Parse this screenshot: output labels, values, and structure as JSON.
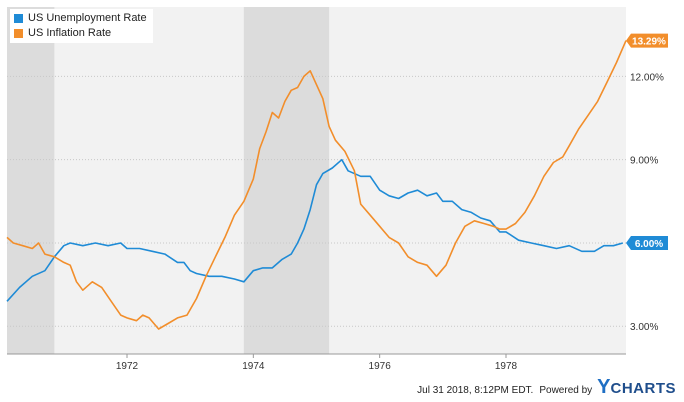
{
  "legend": {
    "items": [
      {
        "label": "US Unemployment Rate",
        "color": "#1f8bd6"
      },
      {
        "label": "US Inflation Rate",
        "color": "#f28e2b"
      }
    ]
  },
  "footer": {
    "timestamp": "Jul 31 2018, 8:12PM EDT.",
    "powered_by": "Powered by",
    "brand_y": "Y",
    "brand_rest": "CHARTS"
  },
  "chart_data": {
    "type": "line",
    "x_range": [
      1970.1,
      1979.9
    ],
    "ylim": [
      2.0,
      14.5
    ],
    "x_ticks": [
      {
        "value": 1972,
        "label": "1972"
      },
      {
        "value": 1974,
        "label": "1974"
      },
      {
        "value": 1976,
        "label": "1976"
      },
      {
        "value": 1978,
        "label": "1978"
      }
    ],
    "y_ticks": [
      {
        "value": 3,
        "label": "3.00%"
      },
      {
        "value": 6,
        "label": "6.00%"
      },
      {
        "value": 9,
        "label": "9.00%"
      },
      {
        "value": 12,
        "label": "12.00%"
      }
    ],
    "shaded_periods": [
      [
        1970.1,
        1970.85
      ],
      [
        1973.85,
        1975.2
      ]
    ],
    "end_labels": [
      {
        "series": "US Inflation Rate",
        "label": "13.29%",
        "value": 13.29,
        "color": "#f28e2b"
      },
      {
        "series": "US Unemployment Rate",
        "label": "6.00%",
        "value": 6.0,
        "color": "#1f8bd6"
      }
    ],
    "series": [
      {
        "name": "US Unemployment Rate",
        "color": "#1f8bd6",
        "points": [
          [
            1970.1,
            3.9
          ],
          [
            1970.3,
            4.4
          ],
          [
            1970.5,
            4.8
          ],
          [
            1970.7,
            5.0
          ],
          [
            1970.85,
            5.5
          ],
          [
            1971.0,
            5.9
          ],
          [
            1971.1,
            6.0
          ],
          [
            1971.3,
            5.9
          ],
          [
            1971.5,
            6.0
          ],
          [
            1971.7,
            5.9
          ],
          [
            1971.9,
            6.0
          ],
          [
            1972.0,
            5.8
          ],
          [
            1972.2,
            5.8
          ],
          [
            1972.4,
            5.7
          ],
          [
            1972.6,
            5.6
          ],
          [
            1972.8,
            5.3
          ],
          [
            1972.9,
            5.3
          ],
          [
            1973.0,
            5.0
          ],
          [
            1973.1,
            4.9
          ],
          [
            1973.3,
            4.8
          ],
          [
            1973.5,
            4.8
          ],
          [
            1973.7,
            4.7
          ],
          [
            1973.85,
            4.6
          ],
          [
            1974.0,
            5.0
          ],
          [
            1974.15,
            5.1
          ],
          [
            1974.3,
            5.1
          ],
          [
            1974.45,
            5.4
          ],
          [
            1974.6,
            5.6
          ],
          [
            1974.7,
            6.0
          ],
          [
            1974.8,
            6.5
          ],
          [
            1974.9,
            7.2
          ],
          [
            1975.0,
            8.1
          ],
          [
            1975.1,
            8.5
          ],
          [
            1975.25,
            8.7
          ],
          [
            1975.4,
            9.0
          ],
          [
            1975.5,
            8.6
          ],
          [
            1975.7,
            8.4
          ],
          [
            1975.85,
            8.4
          ],
          [
            1976.0,
            7.9
          ],
          [
            1976.15,
            7.7
          ],
          [
            1976.3,
            7.6
          ],
          [
            1976.45,
            7.8
          ],
          [
            1976.6,
            7.9
          ],
          [
            1976.75,
            7.7
          ],
          [
            1976.9,
            7.8
          ],
          [
            1977.0,
            7.5
          ],
          [
            1977.15,
            7.5
          ],
          [
            1977.3,
            7.2
          ],
          [
            1977.45,
            7.1
          ],
          [
            1977.6,
            6.9
          ],
          [
            1977.75,
            6.8
          ],
          [
            1977.9,
            6.4
          ],
          [
            1978.0,
            6.4
          ],
          [
            1978.2,
            6.1
          ],
          [
            1978.4,
            6.0
          ],
          [
            1978.6,
            5.9
          ],
          [
            1978.8,
            5.8
          ],
          [
            1979.0,
            5.9
          ],
          [
            1979.2,
            5.7
          ],
          [
            1979.4,
            5.7
          ],
          [
            1979.55,
            5.9
          ],
          [
            1979.7,
            5.9
          ],
          [
            1979.85,
            6.0
          ]
        ]
      },
      {
        "name": "US Inflation Rate",
        "color": "#f28e2b",
        "points": [
          [
            1970.1,
            6.2
          ],
          [
            1970.2,
            6.0
          ],
          [
            1970.35,
            5.9
          ],
          [
            1970.5,
            5.8
          ],
          [
            1970.6,
            6.0
          ],
          [
            1970.7,
            5.6
          ],
          [
            1970.85,
            5.5
          ],
          [
            1971.0,
            5.3
          ],
          [
            1971.1,
            5.2
          ],
          [
            1971.2,
            4.6
          ],
          [
            1971.3,
            4.3
          ],
          [
            1971.45,
            4.6
          ],
          [
            1971.6,
            4.4
          ],
          [
            1971.75,
            3.9
          ],
          [
            1971.9,
            3.4
          ],
          [
            1972.0,
            3.3
          ],
          [
            1972.15,
            3.2
          ],
          [
            1972.25,
            3.4
          ],
          [
            1972.35,
            3.3
          ],
          [
            1972.5,
            2.9
          ],
          [
            1972.65,
            3.1
          ],
          [
            1972.8,
            3.3
          ],
          [
            1972.95,
            3.4
          ],
          [
            1973.1,
            4.0
          ],
          [
            1973.25,
            4.8
          ],
          [
            1973.4,
            5.5
          ],
          [
            1973.55,
            6.2
          ],
          [
            1973.7,
            7.0
          ],
          [
            1973.85,
            7.5
          ],
          [
            1974.0,
            8.3
          ],
          [
            1974.1,
            9.4
          ],
          [
            1974.2,
            10.0
          ],
          [
            1974.3,
            10.7
          ],
          [
            1974.4,
            10.5
          ],
          [
            1974.5,
            11.1
          ],
          [
            1974.6,
            11.5
          ],
          [
            1974.7,
            11.6
          ],
          [
            1974.8,
            12.0
          ],
          [
            1974.9,
            12.2
          ],
          [
            1975.0,
            11.7
          ],
          [
            1975.1,
            11.2
          ],
          [
            1975.2,
            10.2
          ],
          [
            1975.3,
            9.7
          ],
          [
            1975.45,
            9.3
          ],
          [
            1975.6,
            8.6
          ],
          [
            1975.7,
            7.4
          ],
          [
            1975.85,
            7.0
          ],
          [
            1976.0,
            6.6
          ],
          [
            1976.15,
            6.2
          ],
          [
            1976.3,
            6.0
          ],
          [
            1976.45,
            5.5
          ],
          [
            1976.6,
            5.3
          ],
          [
            1976.75,
            5.2
          ],
          [
            1976.9,
            4.8
          ],
          [
            1977.05,
            5.2
          ],
          [
            1977.2,
            6.0
          ],
          [
            1977.35,
            6.6
          ],
          [
            1977.5,
            6.8
          ],
          [
            1977.65,
            6.7
          ],
          [
            1977.8,
            6.6
          ],
          [
            1977.9,
            6.5
          ],
          [
            1978.0,
            6.5
          ],
          [
            1978.15,
            6.7
          ],
          [
            1978.3,
            7.1
          ],
          [
            1978.45,
            7.7
          ],
          [
            1978.6,
            8.4
          ],
          [
            1978.75,
            8.9
          ],
          [
            1978.9,
            9.1
          ],
          [
            1979.0,
            9.5
          ],
          [
            1979.15,
            10.1
          ],
          [
            1979.3,
            10.6
          ],
          [
            1979.45,
            11.1
          ],
          [
            1979.6,
            11.8
          ],
          [
            1979.75,
            12.5
          ],
          [
            1979.9,
            13.29
          ]
        ]
      }
    ]
  }
}
